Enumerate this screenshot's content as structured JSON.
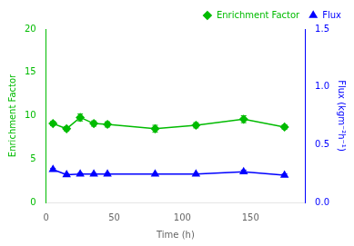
{
  "chart_data": {
    "type": "line",
    "xlabel": "Time (h)",
    "ylabel": "Enrichment Factor",
    "y2label": "Flux (kgm⁻²h⁻¹)",
    "x": [
      5,
      15,
      25,
      35,
      45,
      80,
      110,
      145,
      175
    ],
    "series": [
      {
        "name": "Enrichment Factor",
        "color": "#00bb00",
        "axis": "y",
        "marker": "diamond",
        "line_style": "solid",
        "values": [
          9.1,
          8.5,
          9.8,
          9.1,
          9.0,
          8.5,
          8.9,
          9.6,
          8.7
        ],
        "errors": [
          0.25,
          0.25,
          0.4,
          0.3,
          0.3,
          0.4,
          0.3,
          0.4,
          0.25
        ]
      },
      {
        "name": "Flux",
        "color": "#0000ff",
        "axis": "y2",
        "marker": "triangle",
        "line_style": "solid",
        "values": [
          0.285,
          0.24,
          0.245,
          0.245,
          0.245,
          0.245,
          0.245,
          0.265,
          0.235
        ],
        "errors": [
          0.01,
          0.008,
          0.008,
          0.006,
          0.006,
          0.005,
          0.005,
          0.015,
          0.012
        ]
      }
    ],
    "xlim": [
      0,
      190
    ],
    "xticks": [
      0,
      50,
      100,
      150
    ],
    "ylim": [
      0,
      20
    ],
    "yticks": [
      0,
      5,
      10,
      15,
      20
    ],
    "y2lim": [
      0,
      1.5
    ],
    "y2ticks": [
      {
        "value": 0,
        "label": "0.0"
      },
      0.5,
      {
        "value": 1.0,
        "label": "1.0"
      },
      1.5
    ],
    "grid": false,
    "legend": "upper right"
  }
}
